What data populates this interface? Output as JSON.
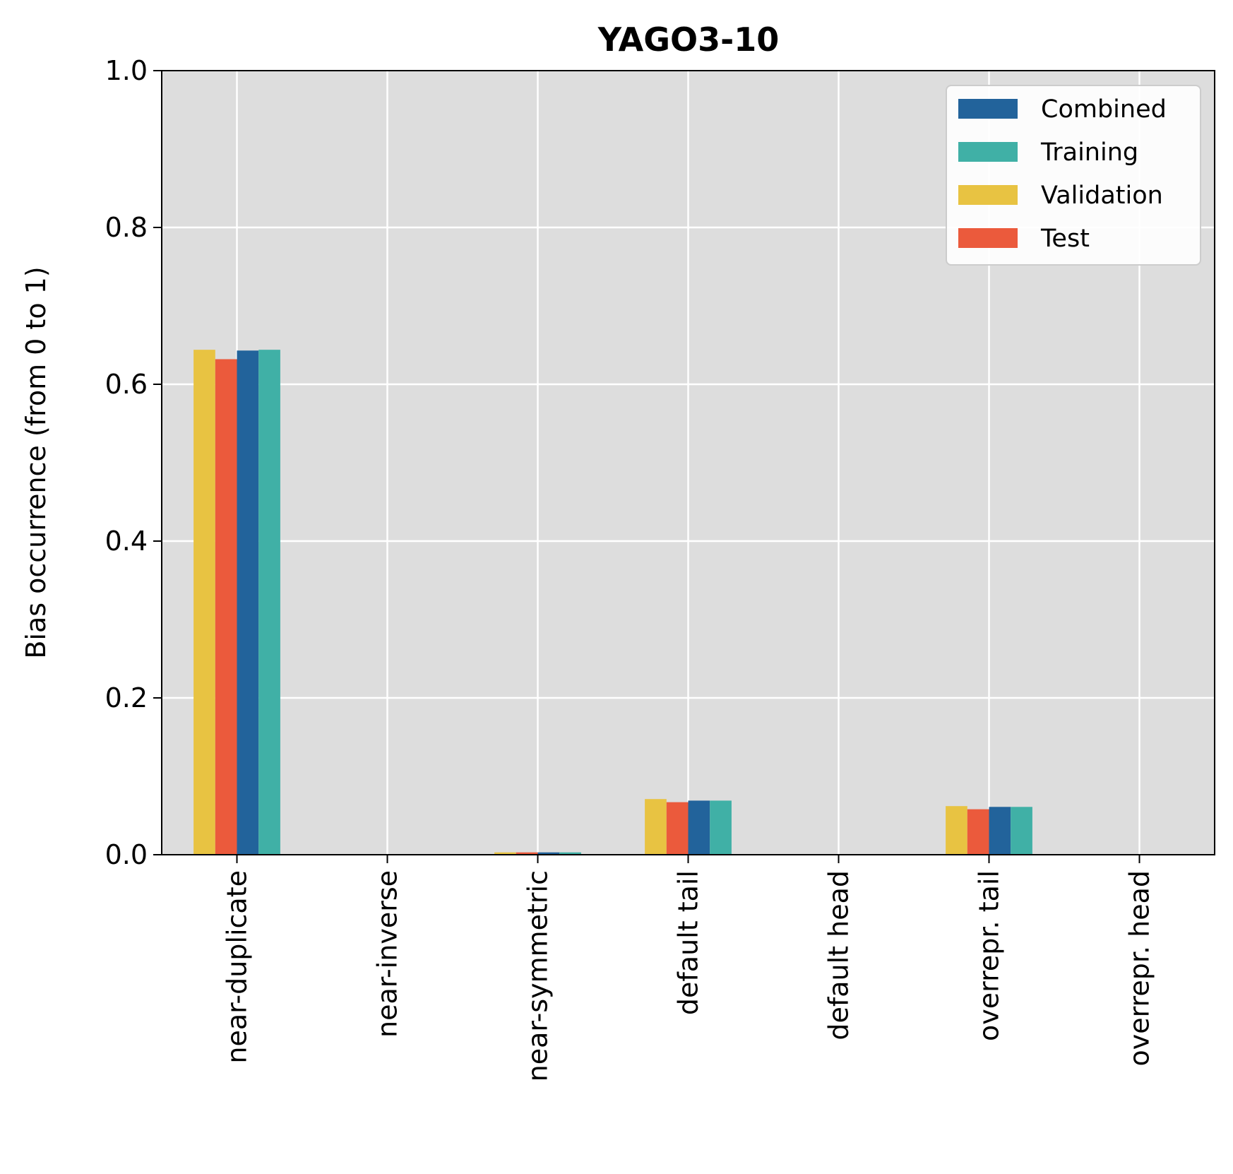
{
  "chart_data": {
    "type": "bar",
    "title": "YAGO3-10",
    "xlabel": "",
    "ylabel": "Bias occurrence (from 0 to 1)",
    "ylim": [
      0,
      1
    ],
    "yticks": [
      "0.0",
      "0.2",
      "0.4",
      "0.6",
      "0.8",
      "1.0"
    ],
    "grid": true,
    "legend_position": "top-right",
    "background": "#dddddd",
    "categories": [
      "near-duplicate",
      "near-inverse",
      "near-symmetric",
      "default tail",
      "default head",
      "overrepr. tail",
      "overrepr. head"
    ],
    "series_order_in_group": [
      "Validation",
      "Test",
      "Combined",
      "Training"
    ],
    "series": [
      {
        "name": "Combined",
        "color": "#22639b",
        "values": [
          0.643,
          0.0,
          0.003,
          0.069,
          0.0,
          0.061,
          0.0
        ]
      },
      {
        "name": "Training",
        "color": "#40b0a6",
        "values": [
          0.644,
          0.0,
          0.003,
          0.069,
          0.0,
          0.061,
          0.0
        ]
      },
      {
        "name": "Validation",
        "color": "#e8c342",
        "values": [
          0.644,
          0.0,
          0.003,
          0.071,
          0.0,
          0.062,
          0.0
        ]
      },
      {
        "name": "Test",
        "color": "#eb5a3c",
        "values": [
          0.632,
          0.0,
          0.003,
          0.067,
          0.0,
          0.058,
          0.0
        ]
      }
    ]
  }
}
